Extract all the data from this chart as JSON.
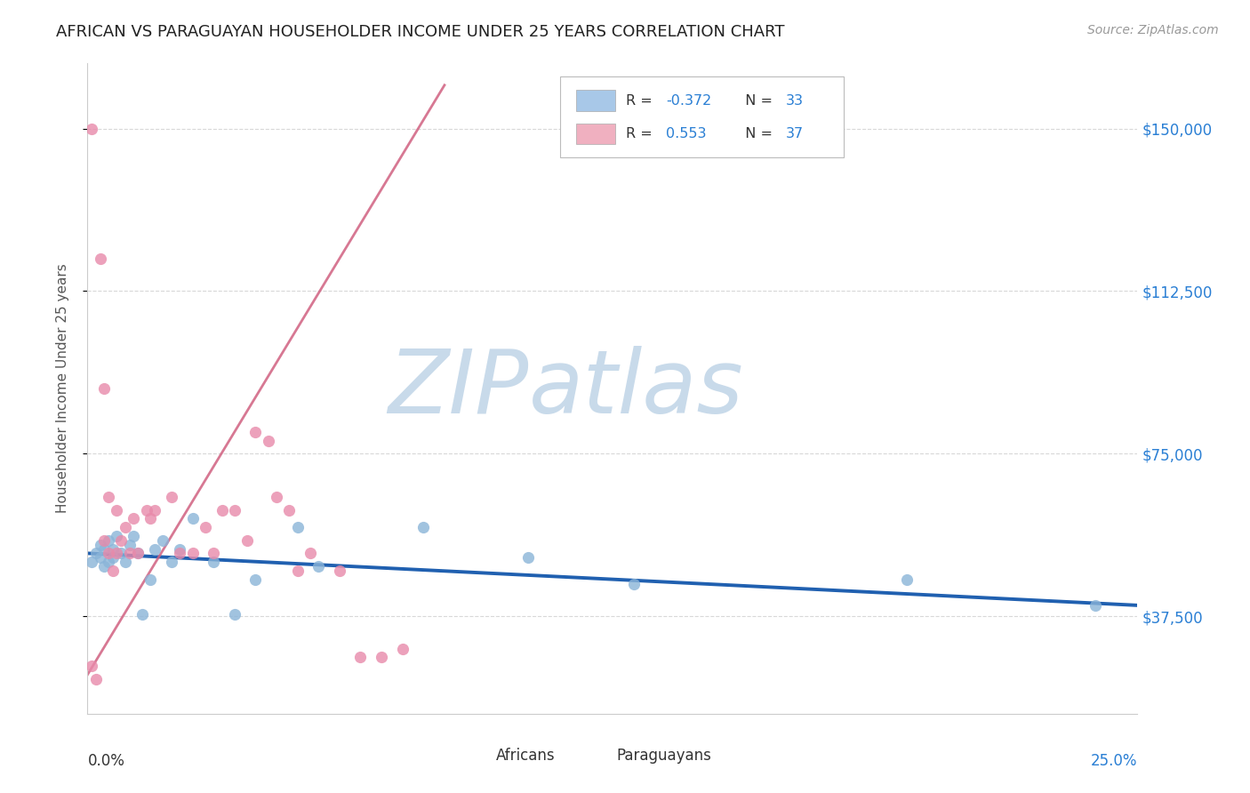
{
  "title": "AFRICAN VS PARAGUAYAN HOUSEHOLDER INCOME UNDER 25 YEARS CORRELATION CHART",
  "source": "Source: ZipAtlas.com",
  "ylabel": "Householder Income Under 25 years",
  "xlim": [
    0.0,
    0.25
  ],
  "ylim": [
    15000,
    165000
  ],
  "yticks": [
    37500,
    75000,
    112500,
    150000
  ],
  "ytick_labels": [
    "$37,500",
    "$75,000",
    "$112,500",
    "$150,000"
  ],
  "africans_color": "#8ab4d8",
  "paraguayans_color": "#e88aaa",
  "african_trend_color": "#2060b0",
  "paraguayan_trend_color": "#d06080",
  "african_trend_x": [
    0.0,
    0.25
  ],
  "african_trend_y": [
    52000,
    40000
  ],
  "paraguayan_trend_x": [
    0.0,
    0.085
  ],
  "paraguayan_trend_y": [
    24000,
    160000
  ],
  "africans_x": [
    0.001,
    0.002,
    0.003,
    0.003,
    0.004,
    0.004,
    0.005,
    0.005,
    0.006,
    0.006,
    0.007,
    0.008,
    0.009,
    0.01,
    0.011,
    0.012,
    0.013,
    0.015,
    0.016,
    0.018,
    0.02,
    0.022,
    0.025,
    0.03,
    0.035,
    0.04,
    0.05,
    0.055,
    0.08,
    0.105,
    0.13,
    0.195,
    0.24
  ],
  "africans_y": [
    50000,
    52000,
    51000,
    54000,
    53000,
    49000,
    50000,
    55000,
    51000,
    53000,
    56000,
    52000,
    50000,
    54000,
    56000,
    52000,
    38000,
    46000,
    53000,
    55000,
    50000,
    53000,
    60000,
    50000,
    38000,
    46000,
    58000,
    49000,
    58000,
    51000,
    45000,
    46000,
    40000
  ],
  "paraguayans_x": [
    0.001,
    0.001,
    0.002,
    0.003,
    0.004,
    0.004,
    0.005,
    0.005,
    0.006,
    0.007,
    0.007,
    0.008,
    0.009,
    0.01,
    0.011,
    0.012,
    0.014,
    0.015,
    0.016,
    0.02,
    0.022,
    0.025,
    0.028,
    0.03,
    0.032,
    0.035,
    0.038,
    0.04,
    0.043,
    0.045,
    0.048,
    0.05,
    0.053,
    0.06,
    0.065,
    0.07,
    0.075
  ],
  "paraguayans_y": [
    150000,
    26000,
    23000,
    120000,
    55000,
    90000,
    65000,
    52000,
    48000,
    62000,
    52000,
    55000,
    58000,
    52000,
    60000,
    52000,
    62000,
    60000,
    62000,
    65000,
    52000,
    52000,
    58000,
    52000,
    62000,
    62000,
    55000,
    80000,
    78000,
    65000,
    62000,
    48000,
    52000,
    48000,
    28000,
    28000,
    30000
  ],
  "legend_box_color": "#a8c8e8",
  "legend_pink_color": "#f0b0c0",
  "watermark_zip_color": "#c8daea",
  "watermark_atlas_color": "#c8daea",
  "grid_color": "#d8d8d8",
  "background_color": "#ffffff"
}
